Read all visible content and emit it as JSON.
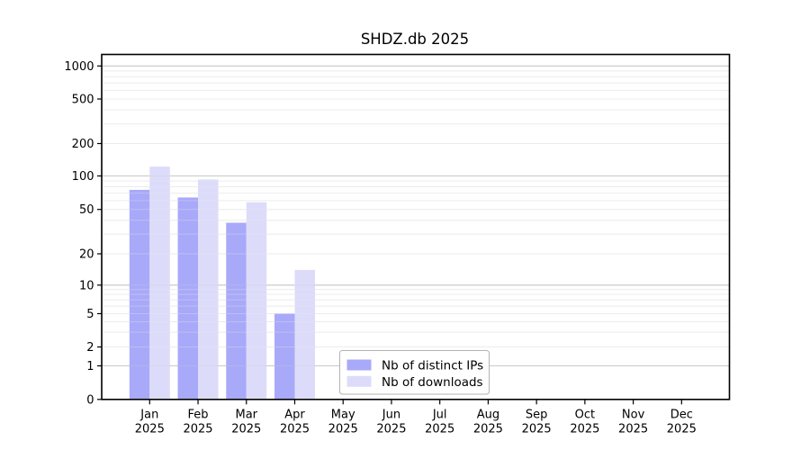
{
  "chart_data": {
    "type": "bar",
    "title": "SHDZ.db 2025",
    "year_label": "2025",
    "categories": [
      "Jan",
      "Feb",
      "Mar",
      "Apr",
      "May",
      "Jun",
      "Jul",
      "Aug",
      "Sep",
      "Oct",
      "Nov",
      "Dec"
    ],
    "series": [
      {
        "name": "Nb of distinct IPs",
        "color": "#a9a9f9",
        "values": [
          75,
          64,
          38,
          5,
          0,
          0,
          0,
          0,
          0,
          0,
          0,
          0
        ]
      },
      {
        "name": "Nb of downloads",
        "color": "#dcdcfa",
        "values": [
          122,
          93,
          58,
          14,
          0,
          0,
          0,
          0,
          0,
          0,
          0,
          0
        ]
      }
    ],
    "yscale": "symlog",
    "yticks": [
      0,
      1,
      2,
      5,
      10,
      20,
      50,
      100,
      200,
      500,
      1000
    ],
    "ylim": [
      0,
      1300
    ],
    "grid": true,
    "legend_position": "lower-center",
    "colors": {
      "major_grid": "#c9c9c9",
      "minor_grid": "#ececec",
      "axis": "#000000",
      "legend_border": "#b3b3b3",
      "background": "#ffffff"
    }
  }
}
